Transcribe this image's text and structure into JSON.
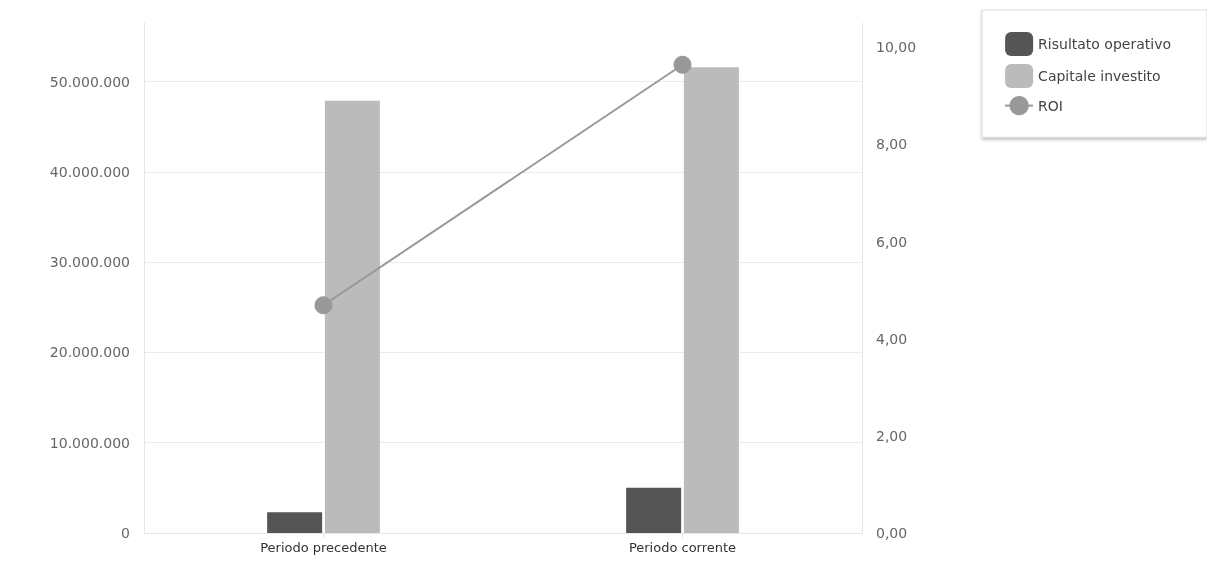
{
  "chart_data": {
    "type": "bar",
    "categories": [
      "Periodo precedente",
      "Periodo corrente"
    ],
    "series": [
      {
        "name": "Risultato operativo",
        "color": "#555555",
        "values": [
          2300000,
          5000000
        ]
      },
      {
        "name": "Capitale investito",
        "color": "#bbbbbb",
        "values": [
          47900000,
          51600000
        ]
      },
      {
        "name": "ROI",
        "type": "line",
        "axis": "y2",
        "color": "#999999",
        "marker": "circle",
        "values": [
          4.69,
          9.64
        ]
      }
    ],
    "ylim": [
      0,
      56500000
    ],
    "yticks": [
      {
        "value": 0,
        "label": "0"
      },
      {
        "value": 10000000,
        "label": "10.000.000"
      },
      {
        "value": 20000000,
        "label": "20.000.000"
      },
      {
        "value": 30000000,
        "label": "30.000.000"
      },
      {
        "value": 40000000,
        "label": "40.000.000"
      },
      {
        "value": 50000000,
        "label": "50.000.000"
      }
    ],
    "y2lim": [
      0,
      10.5
    ],
    "y2ticks": [
      {
        "value": 0,
        "label": "0,00"
      },
      {
        "value": 2,
        "label": "2,00"
      },
      {
        "value": 4,
        "label": "4,00"
      },
      {
        "value": 6,
        "label": "6,00"
      },
      {
        "value": 8,
        "label": "8,00"
      },
      {
        "value": 10,
        "label": "10,00"
      }
    ],
    "grid": "y",
    "legend": "top right"
  }
}
